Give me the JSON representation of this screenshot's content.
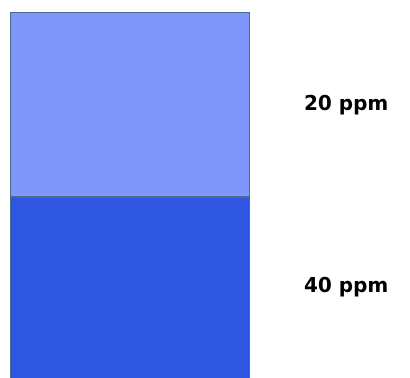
{
  "layers": {
    "top": {
      "label": "20 ppm",
      "color": "#7f96fb"
    },
    "bottom": {
      "label": "40 ppm",
      "color": "#2f56e0"
    }
  }
}
